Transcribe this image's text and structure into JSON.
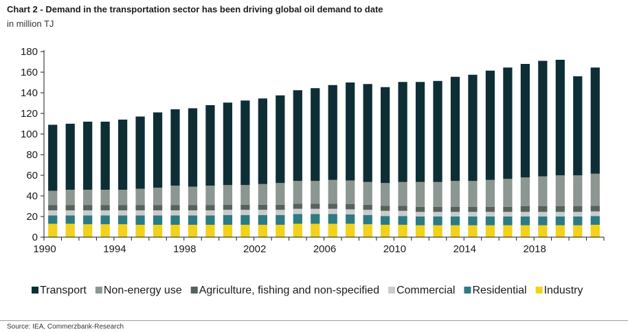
{
  "header": {
    "title": "Chart 2 - Demand in the transportation sector has been driving global oil demand to date",
    "subtitle": "in million TJ"
  },
  "footer": {
    "source": "Source: IEA, Commerzbank-Research"
  },
  "chart_data": {
    "type": "bar",
    "stacked": true,
    "title": "Chart 2 - Demand in the transportation sector has been driving global oil demand to date",
    "ylabel": "in million TJ",
    "xlabel": "",
    "ylim": [
      0,
      180
    ],
    "yticks": [
      0,
      20,
      40,
      60,
      80,
      100,
      120,
      140,
      160,
      180
    ],
    "xtick_labels": [
      "1990",
      "1994",
      "1998",
      "2002",
      "2006",
      "2010",
      "2014",
      "2018"
    ],
    "grid": false,
    "legend_position": "bottom",
    "categories": [
      "1990",
      "1991",
      "1992",
      "1993",
      "1994",
      "1995",
      "1996",
      "1997",
      "1998",
      "1999",
      "2000",
      "2001",
      "2002",
      "2003",
      "2004",
      "2005",
      "2006",
      "2007",
      "2008",
      "2009",
      "2010",
      "2011",
      "2012",
      "2013",
      "2014",
      "2015",
      "2016",
      "2017",
      "2018",
      "2019",
      "2020",
      "2021"
    ],
    "series": [
      {
        "name": "Industry",
        "color": "#f2d21a",
        "values": [
          13,
          13,
          12.5,
          12.5,
          12.5,
          12,
          12,
          12,
          12,
          12,
          12,
          12,
          12,
          12,
          13,
          13,
          13,
          13,
          12.5,
          12,
          12,
          11.5,
          11.5,
          11.5,
          11.5,
          11.5,
          11.5,
          11.5,
          11.5,
          11.5,
          11.5,
          12
        ]
      },
      {
        "name": "Residential",
        "color": "#2e7a83",
        "values": [
          8,
          8,
          8.5,
          8.5,
          8.5,
          9,
          9,
          9,
          9,
          9,
          9.5,
          9.5,
          9.5,
          9.5,
          9.5,
          9.5,
          9.5,
          9,
          9,
          8.5,
          8.5,
          8.5,
          8.5,
          8.5,
          8.5,
          8.5,
          8.5,
          8.5,
          8.5,
          8.5,
          8.5,
          8.5
        ]
      },
      {
        "name": "Commercial",
        "color": "#c8ccca",
        "values": [
          5,
          5,
          5,
          5,
          5,
          5,
          5,
          5,
          5,
          5,
          5,
          5,
          5,
          5,
          5,
          5,
          5,
          5,
          5,
          5,
          5,
          4.5,
          4.5,
          4.5,
          4.5,
          4.5,
          4.5,
          4.5,
          4.5,
          4.5,
          4.5,
          4.5
        ]
      },
      {
        "name": "Agriculture, fishing and non-specified",
        "color": "#56625e",
        "values": [
          5,
          5,
          5,
          5,
          5,
          5,
          5,
          5,
          5,
          5,
          5,
          5,
          5,
          5,
          5,
          5,
          5,
          5,
          5,
          5,
          5,
          5,
          5,
          5,
          5,
          5,
          5,
          5.5,
          5.5,
          5.5,
          5.5,
          5.5
        ]
      },
      {
        "name": "Non-energy use",
        "color": "#8c9791",
        "values": [
          14,
          15,
          15,
          15,
          15,
          16,
          17,
          19,
          18,
          19,
          19,
          19,
          20,
          21,
          22,
          22,
          23,
          23,
          22,
          22,
          23,
          24,
          24,
          25,
          25,
          26,
          27,
          28,
          29,
          30,
          30,
          31
        ]
      },
      {
        "name": "Transport",
        "color": "#0e2e36",
        "values": [
          64,
          64,
          66,
          66,
          68,
          70,
          73,
          74,
          76,
          78,
          80,
          82,
          83,
          85,
          88,
          90,
          92,
          95,
          95,
          93,
          97,
          97,
          98,
          101,
          103,
          106,
          108,
          110,
          112,
          112,
          96,
          103
        ]
      }
    ],
    "legend_order": [
      "Transport",
      "Non-energy use",
      "Agriculture, fishing and non-specified",
      "Commercial",
      "Residential",
      "Industry"
    ]
  }
}
